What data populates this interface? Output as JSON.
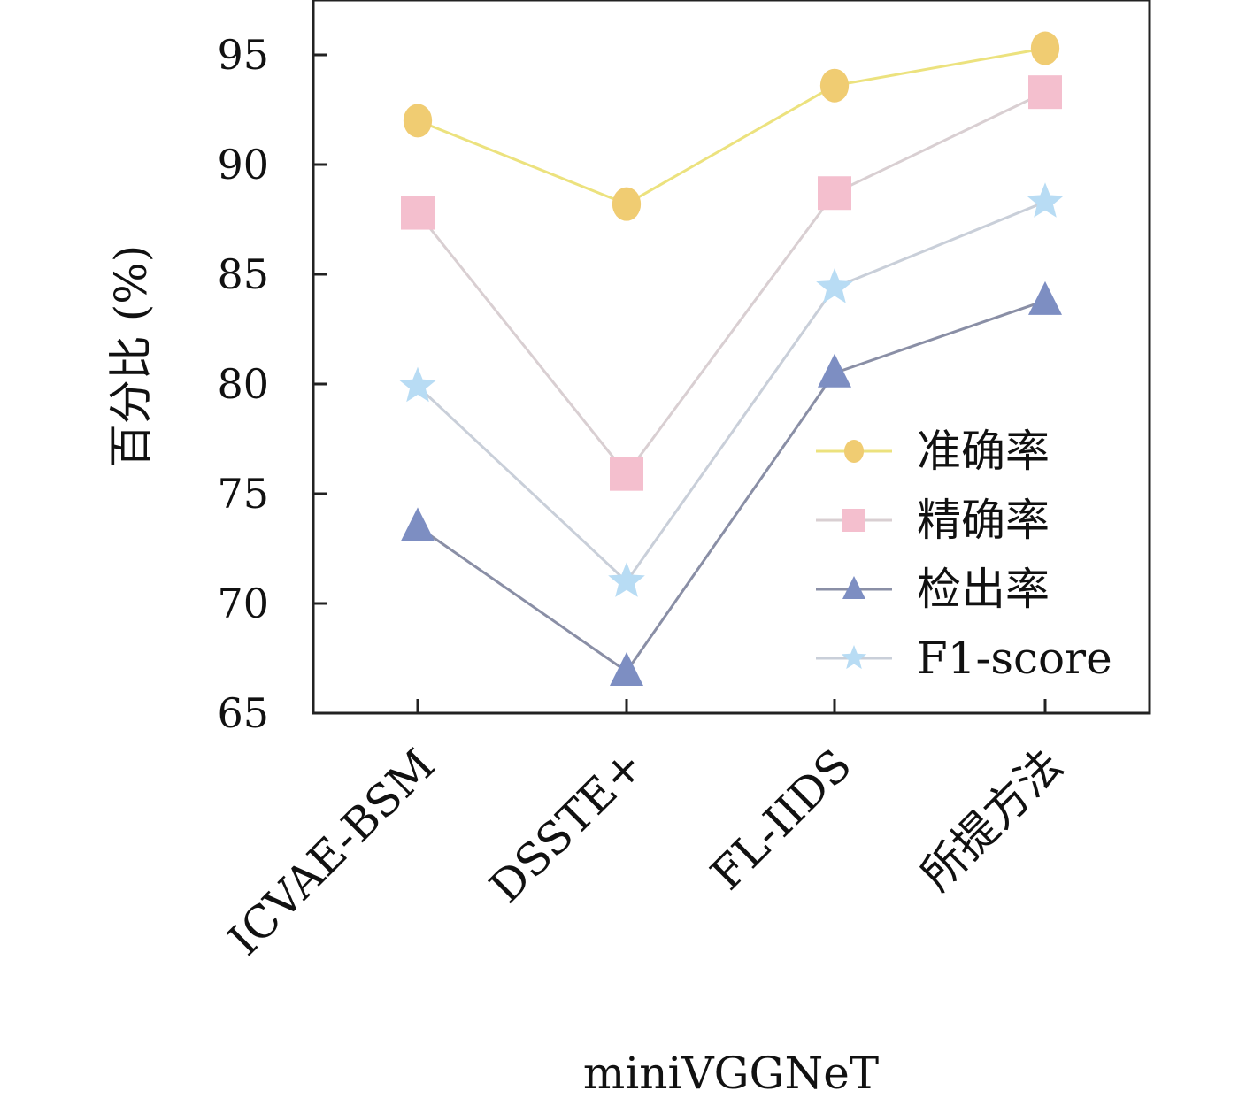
{
  "chart_data": {
    "type": "line",
    "title": "",
    "xlabel": "miniVGGNeT",
    "ylabel": "百分比 (%)",
    "ylim": [
      65,
      97.5
    ],
    "yticks": [
      65,
      70,
      75,
      80,
      85,
      90,
      95
    ],
    "categories": [
      "ICVAE-BSM",
      "DSSTE+",
      "FL-IIDS",
      "所提方法"
    ],
    "grid": false,
    "legend_position": "bottom-right",
    "series": [
      {
        "name": "准确率",
        "marker": "circle",
        "color": "#f0cc72",
        "line_color": "#ece27e",
        "values": [
          92.0,
          88.2,
          93.6,
          95.3
        ]
      },
      {
        "name": "精确率",
        "marker": "square",
        "color": "#f4bfce",
        "line_color": "#d9cfd2",
        "values": [
          87.8,
          75.9,
          88.7,
          93.3
        ]
      },
      {
        "name": "检出率",
        "marker": "triangle",
        "color": "#7d8ec2",
        "line_color": "#8a8fa6",
        "values": [
          73.5,
          66.9,
          80.5,
          83.8
        ]
      },
      {
        "name": "F1-score",
        "marker": "star",
        "color": "#b8dcf4",
        "line_color": "#c9cfd9",
        "values": [
          79.9,
          71.0,
          84.4,
          88.3
        ]
      }
    ]
  }
}
